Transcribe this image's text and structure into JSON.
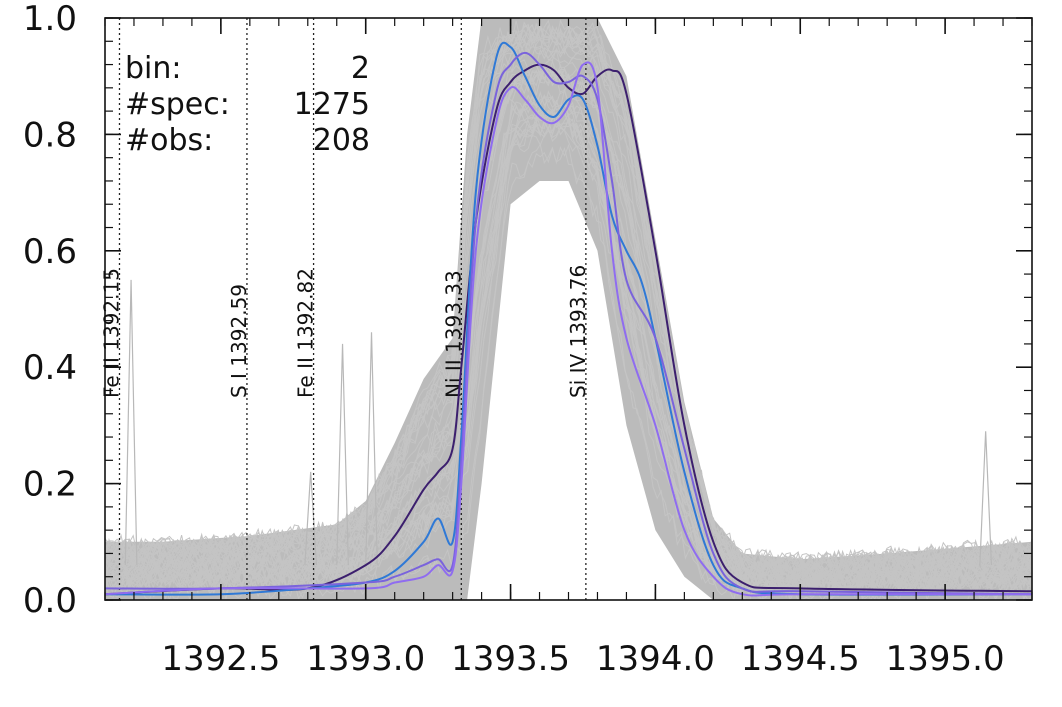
{
  "chart_data": {
    "type": "line",
    "title": "",
    "xlabel": "",
    "ylabel": "",
    "xlim": [
      1392.1,
      1395.3
    ],
    "ylim": [
      0.0,
      1.0
    ],
    "x_ticks": [
      1392.5,
      1393.0,
      1393.5,
      1394.0,
      1394.5,
      1395.0
    ],
    "x_tick_labels": [
      "1392.5",
      "1393.0",
      "1393.5",
      "1394.0",
      "1394.5",
      "1395.0"
    ],
    "y_ticks": [
      0.0,
      0.2,
      0.4,
      0.6,
      0.8,
      1.0
    ],
    "y_tick_labels": [
      "0.0",
      "0.2",
      "0.4",
      "0.6",
      "0.8",
      "1.0"
    ],
    "grid": false,
    "legend": "none",
    "info": [
      {
        "key": "bin:",
        "value": "2"
      },
      {
        "key": "#spec:",
        "value": "1275"
      },
      {
        "key": "#obs:",
        "value": "208"
      }
    ],
    "reference_lines": [
      {
        "x": 1392.15,
        "label": "Fe II 1392.15"
      },
      {
        "x": 1392.59,
        "label": "S I 1392.59"
      },
      {
        "x": 1392.82,
        "label": "Fe II 1392.82"
      },
      {
        "x": 1393.33,
        "label": "Ni II 1393.33"
      },
      {
        "x": 1393.76,
        "label": "Si IV 1393.76"
      }
    ],
    "background_spectra": {
      "color": "#bbbbbb",
      "upper_envelope": {
        "x": [
          1392.1,
          1392.3,
          1392.6,
          1392.9,
          1393.0,
          1393.1,
          1393.2,
          1393.3,
          1393.35,
          1393.4,
          1393.5,
          1393.6,
          1393.7,
          1393.8,
          1393.9,
          1394.0,
          1394.1,
          1394.2,
          1394.3,
          1394.5,
          1394.8,
          1395.3
        ],
        "y": [
          0.1,
          0.1,
          0.11,
          0.13,
          0.17,
          0.27,
          0.38,
          0.45,
          0.8,
          1.0,
          1.0,
          1.0,
          1.0,
          1.0,
          0.9,
          0.62,
          0.34,
          0.14,
          0.08,
          0.07,
          0.08,
          0.1
        ]
      },
      "lower_envelope": {
        "x": [
          1392.1,
          1393.35,
          1393.4,
          1393.5,
          1393.6,
          1393.7,
          1393.8,
          1393.9,
          1394.0,
          1394.1,
          1394.2,
          1395.3
        ],
        "y": [
          0.0,
          0.0,
          0.2,
          0.68,
          0.72,
          0.72,
          0.6,
          0.3,
          0.12,
          0.04,
          0.0,
          0.0
        ]
      },
      "spikes": [
        {
          "x": 1392.19,
          "y": 0.55
        },
        {
          "x": 1392.92,
          "y": 0.44
        },
        {
          "x": 1393.02,
          "y": 0.46
        },
        {
          "x": 1392.81,
          "y": 0.22
        },
        {
          "x": 1395.14,
          "y": 0.29
        }
      ]
    },
    "series": [
      {
        "color": "#3c1f6e",
        "x": [
          1392.1,
          1392.5,
          1392.8,
          1393.0,
          1393.1,
          1393.2,
          1393.25,
          1393.3,
          1393.33,
          1393.38,
          1393.45,
          1393.5,
          1393.55,
          1393.6,
          1393.65,
          1393.7,
          1393.75,
          1393.8,
          1393.85,
          1393.9,
          1394.0,
          1394.1,
          1394.2,
          1394.3,
          1394.5,
          1395.3
        ],
        "y": [
          0.01,
          0.02,
          0.02,
          0.06,
          0.11,
          0.19,
          0.22,
          0.26,
          0.4,
          0.65,
          0.84,
          0.89,
          0.91,
          0.92,
          0.91,
          0.88,
          0.87,
          0.9,
          0.91,
          0.87,
          0.6,
          0.3,
          0.1,
          0.03,
          0.02,
          0.015
        ]
      },
      {
        "color": "#2f79d6",
        "x": [
          1392.1,
          1392.5,
          1392.8,
          1393.0,
          1393.1,
          1393.2,
          1393.25,
          1393.3,
          1393.33,
          1393.38,
          1393.45,
          1393.5,
          1393.55,
          1393.6,
          1393.65,
          1393.7,
          1393.75,
          1393.8,
          1393.85,
          1393.9,
          1393.95,
          1394.0,
          1394.1,
          1394.2,
          1394.3,
          1394.5,
          1395.3
        ],
        "y": [
          0.01,
          0.01,
          0.02,
          0.03,
          0.05,
          0.1,
          0.14,
          0.1,
          0.28,
          0.7,
          0.93,
          0.95,
          0.9,
          0.85,
          0.83,
          0.86,
          0.86,
          0.78,
          0.66,
          0.6,
          0.55,
          0.45,
          0.22,
          0.06,
          0.02,
          0.01,
          0.01
        ]
      },
      {
        "color": "#7a63dc",
        "x": [
          1392.1,
          1392.5,
          1393.0,
          1393.1,
          1393.2,
          1393.25,
          1393.3,
          1393.33,
          1393.38,
          1393.45,
          1393.5,
          1393.55,
          1393.6,
          1393.65,
          1393.7,
          1393.75,
          1393.8,
          1393.85,
          1393.9,
          1394.0,
          1394.1,
          1394.2,
          1394.3,
          1394.5,
          1395.3
        ],
        "y": [
          0.02,
          0.02,
          0.03,
          0.04,
          0.06,
          0.07,
          0.06,
          0.24,
          0.65,
          0.87,
          0.92,
          0.94,
          0.92,
          0.89,
          0.89,
          0.9,
          0.86,
          0.72,
          0.55,
          0.45,
          0.26,
          0.08,
          0.02,
          0.015,
          0.01
        ]
      },
      {
        "color": "#8f6cf0",
        "x": [
          1392.1,
          1392.5,
          1393.0,
          1393.1,
          1393.2,
          1393.25,
          1393.3,
          1393.33,
          1393.38,
          1393.45,
          1393.5,
          1393.55,
          1393.6,
          1393.65,
          1393.7,
          1393.75,
          1393.8,
          1393.85,
          1393.9,
          1394.0,
          1394.1,
          1394.2,
          1394.3,
          1394.5,
          1395.3
        ],
        "y": [
          0.01,
          0.02,
          0.02,
          0.03,
          0.04,
          0.06,
          0.05,
          0.2,
          0.6,
          0.82,
          0.88,
          0.86,
          0.83,
          0.82,
          0.85,
          0.92,
          0.88,
          0.6,
          0.45,
          0.3,
          0.12,
          0.04,
          0.01,
          0.01,
          0.01
        ]
      }
    ]
  }
}
